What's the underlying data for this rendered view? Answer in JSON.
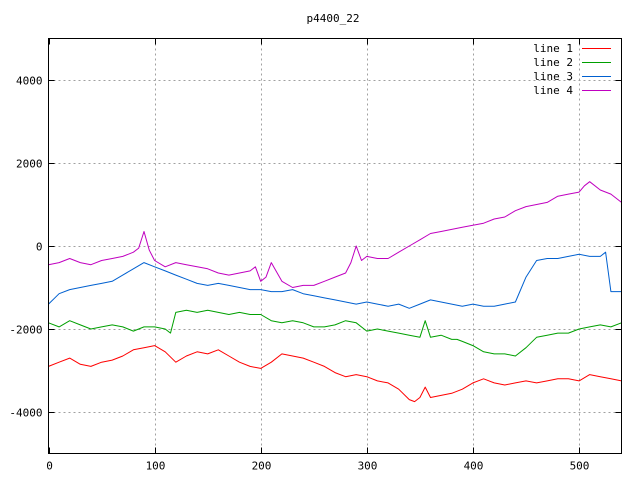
{
  "chart_data": {
    "type": "line",
    "title": "p4400_22",
    "xlabel": "",
    "ylabel": "",
    "xlim": [
      0,
      540
    ],
    "ylim": [
      -5000,
      5000
    ],
    "x_ticks": [
      0,
      100,
      200,
      300,
      400,
      500
    ],
    "y_ticks": [
      -4000,
      -2000,
      0,
      2000,
      4000
    ],
    "grid": true,
    "legend_position": "top-right",
    "series": [
      {
        "name": "line 1",
        "color": "#ff0000",
        "x": [
          0,
          10,
          20,
          30,
          40,
          50,
          60,
          70,
          80,
          90,
          100,
          110,
          120,
          130,
          140,
          150,
          160,
          170,
          180,
          190,
          200,
          210,
          220,
          230,
          240,
          250,
          260,
          270,
          280,
          290,
          300,
          310,
          320,
          330,
          340,
          345,
          350,
          355,
          360,
          370,
          380,
          390,
          400,
          410,
          420,
          430,
          440,
          450,
          460,
          470,
          480,
          490,
          500,
          510,
          520,
          530,
          540
        ],
        "values": [
          -2900,
          -2800,
          -2700,
          -2850,
          -2900,
          -2800,
          -2750,
          -2650,
          -2500,
          -2450,
          -2400,
          -2550,
          -2800,
          -2650,
          -2550,
          -2600,
          -2500,
          -2650,
          -2800,
          -2900,
          -2950,
          -2800,
          -2600,
          -2650,
          -2700,
          -2800,
          -2900,
          -3050,
          -3150,
          -3100,
          -3150,
          -3250,
          -3300,
          -3450,
          -3700,
          -3750,
          -3650,
          -3400,
          -3650,
          -3600,
          -3550,
          -3450,
          -3300,
          -3200,
          -3300,
          -3350,
          -3300,
          -3250,
          -3300,
          -3250,
          -3200,
          -3200,
          -3250,
          -3100,
          -3150,
          -3200,
          -3250
        ]
      },
      {
        "name": "line 2",
        "color": "#00a000",
        "x": [
          0,
          10,
          20,
          30,
          40,
          50,
          60,
          70,
          80,
          90,
          100,
          110,
          115,
          120,
          130,
          140,
          150,
          160,
          170,
          180,
          190,
          200,
          210,
          220,
          230,
          240,
          250,
          260,
          270,
          280,
          290,
          300,
          310,
          320,
          330,
          340,
          350,
          355,
          360,
          370,
          380,
          385,
          390,
          400,
          410,
          420,
          430,
          440,
          450,
          460,
          470,
          480,
          490,
          500,
          510,
          520,
          530,
          540
        ],
        "values": [
          -1850,
          -1950,
          -1800,
          -1900,
          -2000,
          -1950,
          -1900,
          -1950,
          -2050,
          -1950,
          -1950,
          -2000,
          -2100,
          -1600,
          -1550,
          -1600,
          -1550,
          -1600,
          -1650,
          -1600,
          -1650,
          -1650,
          -1800,
          -1850,
          -1800,
          -1850,
          -1950,
          -1950,
          -1900,
          -1800,
          -1850,
          -2050,
          -2000,
          -2050,
          -2100,
          -2150,
          -2200,
          -1800,
          -2200,
          -2150,
          -2250,
          -2250,
          -2300,
          -2400,
          -2550,
          -2600,
          -2600,
          -2650,
          -2450,
          -2200,
          -2150,
          -2100,
          -2100,
          -2000,
          -1950,
          -1900,
          -1950,
          -1850
        ]
      },
      {
        "name": "line 3",
        "color": "#0060d0",
        "x": [
          0,
          10,
          20,
          30,
          40,
          50,
          60,
          70,
          80,
          90,
          100,
          110,
          120,
          130,
          140,
          150,
          160,
          170,
          180,
          190,
          200,
          210,
          220,
          230,
          240,
          250,
          260,
          270,
          280,
          290,
          300,
          310,
          320,
          330,
          340,
          350,
          360,
          370,
          380,
          390,
          400,
          410,
          420,
          430,
          440,
          450,
          460,
          470,
          480,
          490,
          500,
          510,
          520,
          525,
          530,
          540
        ],
        "values": [
          -1400,
          -1150,
          -1050,
          -1000,
          -950,
          -900,
          -850,
          -700,
          -550,
          -400,
          -500,
          -600,
          -700,
          -800,
          -900,
          -950,
          -900,
          -950,
          -1000,
          -1050,
          -1050,
          -1100,
          -1100,
          -1050,
          -1150,
          -1200,
          -1250,
          -1300,
          -1350,
          -1400,
          -1350,
          -1400,
          -1450,
          -1400,
          -1500,
          -1400,
          -1300,
          -1350,
          -1400,
          -1450,
          -1400,
          -1450,
          -1450,
          -1400,
          -1350,
          -750,
          -350,
          -300,
          -300,
          -250,
          -200,
          -250,
          -250,
          -150,
          -1100,
          -1100
        ]
      },
      {
        "name": "line 4",
        "color": "#c000c0",
        "x": [
          0,
          10,
          20,
          30,
          40,
          50,
          60,
          70,
          80,
          85,
          90,
          95,
          100,
          110,
          120,
          130,
          140,
          150,
          160,
          170,
          180,
          190,
          195,
          200,
          205,
          210,
          220,
          230,
          240,
          250,
          260,
          270,
          280,
          285,
          290,
          295,
          300,
          310,
          320,
          330,
          340,
          350,
          360,
          370,
          380,
          390,
          400,
          410,
          420,
          430,
          440,
          450,
          460,
          470,
          480,
          490,
          500,
          505,
          510,
          520,
          530,
          540
        ],
        "values": [
          -450,
          -400,
          -300,
          -400,
          -450,
          -350,
          -300,
          -250,
          -150,
          -50,
          350,
          -100,
          -350,
          -500,
          -400,
          -450,
          -500,
          -550,
          -650,
          -700,
          -650,
          -600,
          -500,
          -850,
          -750,
          -400,
          -850,
          -1000,
          -950,
          -950,
          -850,
          -750,
          -650,
          -400,
          0,
          -350,
          -250,
          -300,
          -300,
          -150,
          0,
          150,
          300,
          350,
          400,
          450,
          500,
          550,
          650,
          700,
          850,
          950,
          1000,
          1050,
          1200,
          1250,
          1300,
          1450,
          1550,
          1350,
          1250,
          1050
        ]
      }
    ]
  }
}
